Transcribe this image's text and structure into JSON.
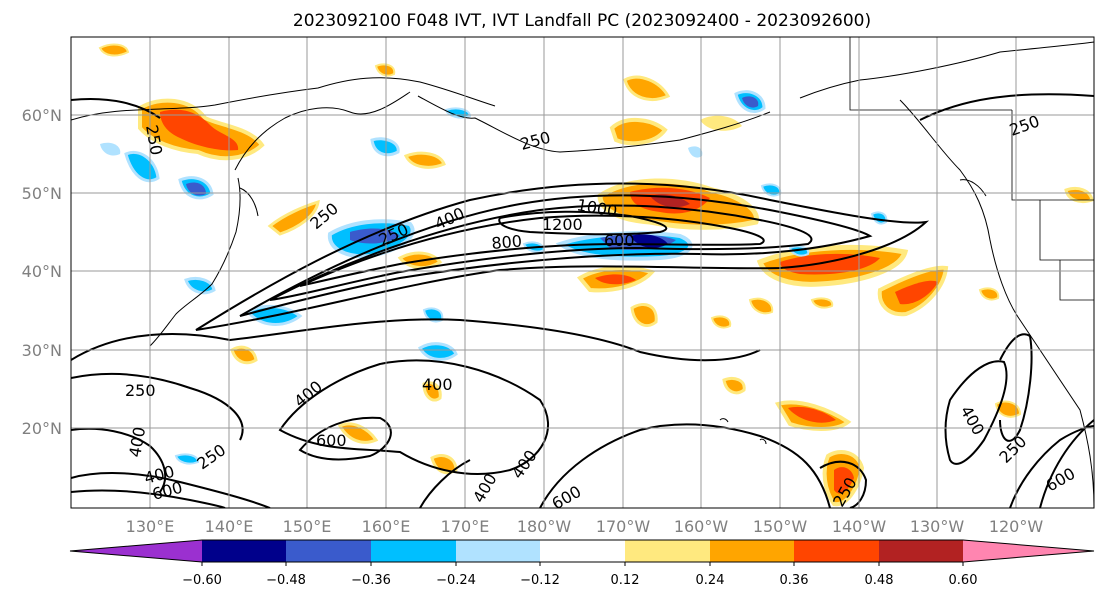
{
  "title": "2023092100 F048 IVT, IVT Landfall PC (2023092400 - 2023092600)",
  "map": {
    "lat_labels": [
      "60°N",
      "50°N",
      "40°N",
      "30°N",
      "20°N"
    ],
    "lon_labels": [
      "130°E",
      "140°E",
      "150°E",
      "160°E",
      "170°E",
      "180°W",
      "170°W",
      "160°W",
      "150°W",
      "140°W",
      "130°W",
      "120°W"
    ],
    "gridlines": true,
    "contour_labels": [
      "250",
      "250",
      "250",
      "250",
      "250",
      "400",
      "800",
      "1000",
      "1200",
      "600",
      "250",
      "400",
      "400",
      "600",
      "400",
      "400",
      "600",
      "250",
      "400",
      "600",
      "400",
      "250",
      "250",
      "400",
      "600"
    ]
  },
  "colorbar": {
    "tick_labels": [
      "−0.60",
      "−0.48",
      "−0.36",
      "−0.24",
      "−0.12",
      "0.12",
      "0.24",
      "0.36",
      "0.48",
      "0.60"
    ],
    "colors": [
      "#9b30d0",
      "#00008b",
      "#3a5bcc",
      "#00bfff",
      "#b0e2ff",
      "#ffffff",
      "#ffe97f",
      "#ffa500",
      "#ff4500",
      "#b22222",
      "#ff85b0"
    ]
  }
}
